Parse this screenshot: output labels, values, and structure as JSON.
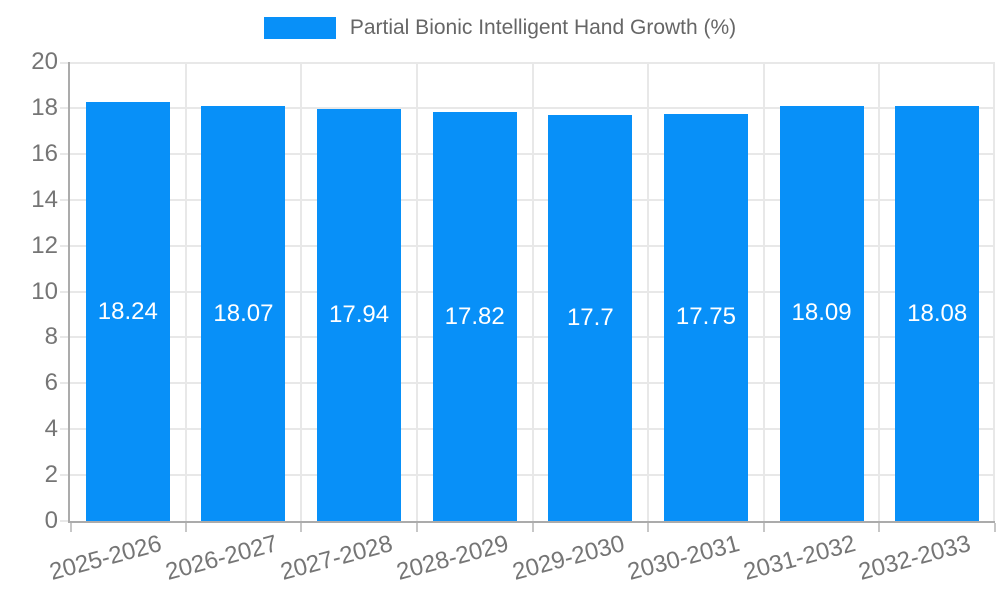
{
  "legend": {
    "label": "Partial Bionic Intelligent Hand Growth (%)"
  },
  "colors": {
    "bar": "#0890f8",
    "grid": "#e8e8e8",
    "axis": "#ababab",
    "tick_text": "#757575",
    "legend_text": "#666666",
    "value_text": "#ffffff"
  },
  "chart_data": {
    "type": "bar",
    "title": "Partial Bionic Intelligent Hand Growth (%)",
    "categories": [
      "2025-2026",
      "2026-2027",
      "2027-2028",
      "2028-2029",
      "2029-2030",
      "2030-2031",
      "2031-2032",
      "2032-2033"
    ],
    "values": [
      18.24,
      18.07,
      17.94,
      17.82,
      17.7,
      17.75,
      18.09,
      18.08
    ],
    "value_labels": [
      "18.24",
      "18.07",
      "17.94",
      "17.82",
      "17.7",
      "17.75",
      "18.09",
      "18.08"
    ],
    "xlabel": "",
    "ylabel": "",
    "ylim": [
      0,
      20
    ],
    "ytick_step": 2,
    "grid": true,
    "legend_position": "top",
    "value_label_position": "inside-center",
    "x_label_rotation_deg": -15
  }
}
